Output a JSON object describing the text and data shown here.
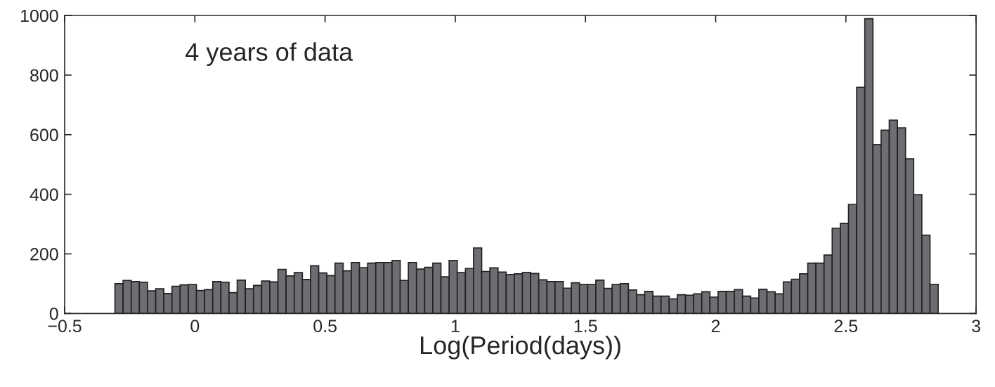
{
  "chart_data": {
    "type": "histogram",
    "xlabel": "Log(Period(days))",
    "annotations": [
      "4 years of data"
    ],
    "color": "#6d6e72",
    "bins": [
      -0.307,
      -0.2757,
      -0.2444,
      -0.2131,
      -0.1818,
      -0.1505,
      -0.1192,
      -0.0879,
      -0.0566,
      -0.0253,
      0.006,
      0.0373,
      0.0686,
      0.0999,
      0.1312,
      0.1625,
      0.1938,
      0.2251,
      0.2564,
      0.2877,
      0.319,
      0.3503,
      0.3816,
      0.4129,
      0.4442,
      0.4755,
      0.5068,
      0.5381,
      0.5694,
      0.6007,
      0.632,
      0.6633,
      0.6946,
      0.7259,
      0.7572,
      0.7885,
      0.8198,
      0.8511,
      0.8824,
      0.9137,
      0.945,
      0.9763,
      1.0076,
      1.0389,
      1.0702,
      1.1015,
      1.1328,
      1.1641,
      1.1954,
      1.2267,
      1.258,
      1.2893,
      1.3206,
      1.3519,
      1.3832,
      1.4145,
      1.4458,
      1.4771,
      1.5084,
      1.5397,
      1.571,
      1.6023,
      1.6336,
      1.6649,
      1.6962,
      1.7275,
      1.7588,
      1.7901,
      1.8214,
      1.8527,
      1.884,
      1.9153,
      1.9466,
      1.9779,
      2.0092,
      2.0405,
      2.0718,
      2.1031,
      2.1344,
      2.1657,
      2.197,
      2.2283,
      2.2596,
      2.2909,
      2.3222,
      2.3535,
      2.3848,
      2.4161,
      2.4474,
      2.4787,
      2.51,
      2.5413,
      2.5726,
      2.6039,
      2.6352,
      2.6665,
      2.6978,
      2.7291,
      2.7604,
      2.7917,
      2.823,
      2.8543
    ],
    "values": [
      100,
      111,
      107,
      105,
      76,
      83,
      67,
      91,
      96,
      97,
      77,
      80,
      107,
      105,
      70,
      112,
      83,
      94,
      109,
      106,
      148,
      126,
      137,
      114,
      160,
      136,
      127,
      169,
      143,
      171,
      154,
      169,
      171,
      171,
      178,
      111,
      171,
      149,
      155,
      169,
      123,
      178,
      137,
      151,
      220,
      141,
      153,
      139,
      131,
      133,
      138,
      134,
      113,
      107,
      107,
      85,
      103,
      97,
      97,
      112,
      84,
      97,
      100,
      79,
      63,
      74,
      58,
      58,
      49,
      63,
      61,
      66,
      73,
      55,
      74,
      74,
      80,
      58,
      52,
      81,
      73,
      66,
      106,
      115,
      133,
      169,
      169,
      196,
      286,
      302,
      366,
      759,
      989,
      567,
      615,
      649,
      623,
      519,
      399,
      263,
      98
    ],
    "xlim": [
      -0.5,
      3
    ],
    "xticks": [
      -0.5,
      0,
      0.5,
      1,
      1.5,
      2,
      2.5,
      3
    ],
    "ylim": [
      0,
      1000
    ],
    "yticks": [
      0,
      200,
      400,
      600,
      800,
      1000
    ]
  }
}
